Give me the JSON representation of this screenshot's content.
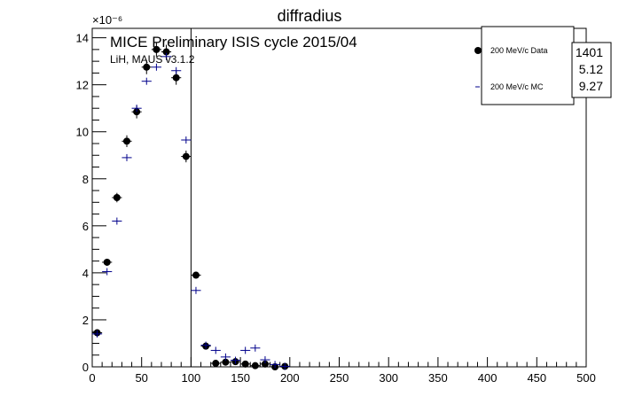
{
  "chart_data": {
    "type": "scatter",
    "title": "diffradius",
    "xlabel": "",
    "ylabel": "",
    "xlim": [
      0,
      500
    ],
    "ylim": [
      0,
      14.4
    ],
    "y_scale_exponent": "×10⁻⁶",
    "x_ticks": [
      0,
      50,
      100,
      150,
      200,
      250,
      300,
      350,
      400,
      450,
      500
    ],
    "y_ticks": [
      0,
      2,
      4,
      6,
      8,
      10,
      12,
      14
    ],
    "annotations": [
      "MICE Preliminary ISIS cycle 2015/04",
      "LiH, MAUS v3.1.2"
    ],
    "vertical_line_x": 100,
    "grid": false,
    "legend_position": "top-right",
    "series": [
      {
        "name": "200 MeV/c Data",
        "marker": "filled-circle",
        "color": "#000000",
        "x": [
          5,
          15,
          25,
          35,
          45,
          55,
          65,
          75,
          85,
          95,
          105,
          115,
          125,
          135,
          145,
          155,
          165,
          175,
          185,
          195
        ],
        "y": [
          1.45,
          4.45,
          7.2,
          9.6,
          10.85,
          12.75,
          13.5,
          13.4,
          12.3,
          8.95,
          3.9,
          0.88,
          0.15,
          0.2,
          0.22,
          0.12,
          0.05,
          0.12,
          0.0,
          0.02
        ],
        "yerr": [
          0.12,
          0.15,
          0.2,
          0.25,
          0.28,
          0.3,
          0.3,
          0.3,
          0.3,
          0.25,
          0.15,
          0.1,
          0.05,
          0.05,
          0.05,
          0.05,
          0.03,
          0.05,
          0.02,
          0.02
        ]
      },
      {
        "name": "200 MeV/c MC",
        "marker": "cross",
        "color": "#00008b",
        "x": [
          5,
          15,
          25,
          35,
          45,
          55,
          65,
          75,
          85,
          95,
          105,
          115,
          125,
          135,
          145,
          155,
          165,
          175,
          185,
          195
        ],
        "y": [
          1.4,
          4.05,
          6.2,
          8.9,
          11.0,
          12.15,
          12.75,
          13.2,
          12.6,
          9.65,
          3.25,
          0.92,
          0.7,
          0.42,
          0.28,
          0.7,
          0.8,
          0.3,
          0.1,
          0.02
        ]
      }
    ],
    "stats_box": {
      "values": [
        "1401",
        "5.12",
        "9.27"
      ]
    }
  }
}
